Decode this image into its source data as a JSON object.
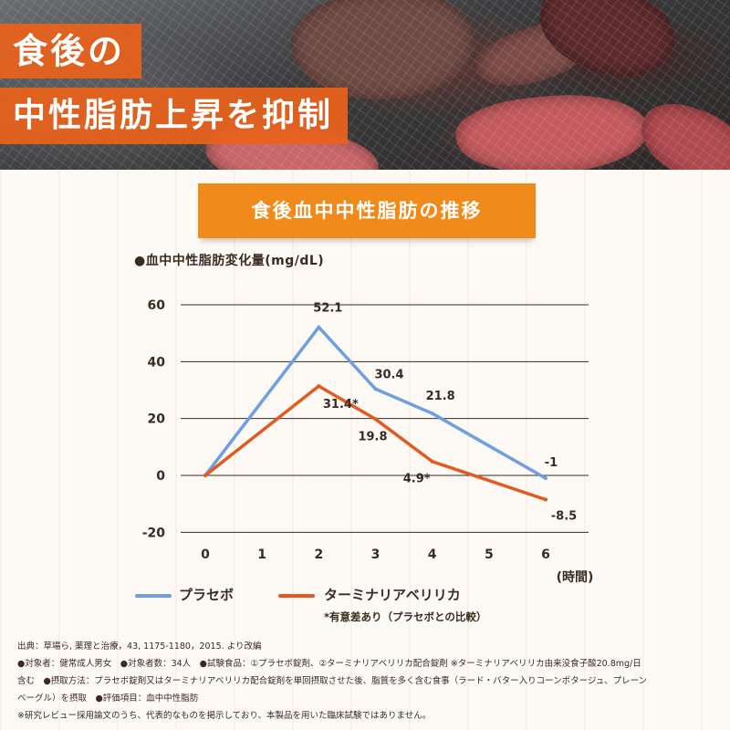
{
  "hero": {
    "line1": "食後の",
    "line2": "中性脂肪上昇を抑制"
  },
  "chart_title": "食後血中中性脂肪の推移",
  "colors": {
    "placebo": "#6e9fe0",
    "terminalia": "#e25a20",
    "accent_orange": "#f08a1a",
    "hero_label": "#e8621c"
  },
  "chart_data": {
    "type": "line",
    "ylabel": "●血中中性脂肪変化量(mg/dL)",
    "xlabel": "(時間)",
    "x_ticks": [
      "0",
      "1",
      "2",
      "3",
      "4",
      "5",
      "6"
    ],
    "y_ticks": [
      "60",
      "40",
      "20",
      "0",
      "-20"
    ],
    "ylim": [
      -20,
      60
    ],
    "xlim": [
      0,
      6
    ],
    "grid": true,
    "legend_placement": "bottom",
    "series": [
      {
        "name": "プラセボ",
        "color": "#6e9fe0",
        "x": [
          0,
          2,
          3,
          4,
          6
        ],
        "y": [
          0,
          52.1,
          30.4,
          21.8,
          -1
        ],
        "labels": [
          "",
          "52.1",
          "30.4",
          "21.8",
          "-1"
        ]
      },
      {
        "name": "ターミナリアベリリカ",
        "color": "#e25a20",
        "x": [
          0,
          2,
          3,
          4,
          6
        ],
        "y": [
          0,
          31.4,
          19.8,
          4.9,
          -8.5
        ],
        "labels": [
          "",
          "31.4*",
          "19.8",
          "4.9*",
          "-8.5"
        ]
      }
    ]
  },
  "significance_note": "*有意差あり（プラセボとの比較）",
  "notes": [
    "出典：草場ら, 薬理と治療，43, 1175-1180，2015. より改編",
    "●対象者：健常成人男女　●対象者数：34人　●試験食品：①プラセボ錠剤、②ターミナリアベリリカ配合錠剤 ※ターミナリアベリリカ由来没食子酸20.8mg/日",
    "含む　●摂取方法：プラセボ錠剤又はターミナリアベリリカ配合錠剤を単回摂取させた後、脂質を多く含む食事（ラード・バター入りコーンポタージュ、プレーン",
    "ベーグル）を摂取　●評価項目：血中中性脂肪",
    "※研究レビュー採用論文のうち、代表的なものを掲示しており、本製品を用いた臨床試験ではありません。"
  ]
}
